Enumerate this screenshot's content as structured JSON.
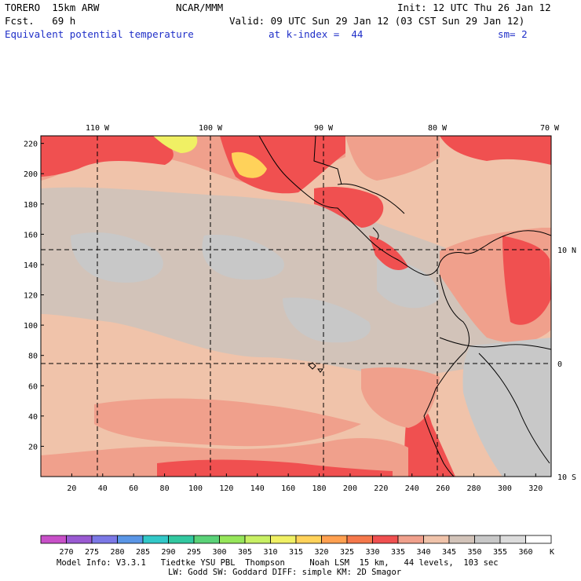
{
  "header": {
    "model": "TORERO  15km ARW",
    "org": "NCAR/MMM",
    "init": "Init: 12 UTC Thu 26 Jan 12",
    "fcst": "Fcst.   69 h",
    "valid": "Valid: 09 UTC Sun 29 Jan 12 (03 CST Sun 29 Jan 12)",
    "field": "Equivalent potential temperature",
    "level": "at k-index =  44",
    "smooth": "sm= 2"
  },
  "map": {
    "lon_labels": [
      "110 W",
      "100 W",
      "90 W",
      "80 W",
      "70 W"
    ],
    "lat_labels": [
      "10 N",
      "0",
      "10 S"
    ],
    "y_ticks": [
      "220",
      "200",
      "180",
      "160",
      "140",
      "120",
      "100",
      "80",
      "60",
      "40",
      "20"
    ],
    "x_ticks": [
      "20",
      "40",
      "60",
      "80",
      "100",
      "120",
      "140",
      "160",
      "180",
      "200",
      "220",
      "240",
      "260",
      "280",
      "300",
      "320"
    ],
    "grid_i_max": 330,
    "grid_j_max": 225
  },
  "colorbar": {
    "unit": "K",
    "levels": [
      "270",
      "275",
      "280",
      "285",
      "290",
      "295",
      "300",
      "305",
      "310",
      "315",
      "320",
      "325",
      "330",
      "335",
      "340",
      "345",
      "350",
      "355",
      "360"
    ],
    "colors": [
      "#c850c8",
      "#9a5ad2",
      "#7b78e6",
      "#5a96e6",
      "#32c8c8",
      "#32c8a0",
      "#5ad278",
      "#96e65a",
      "#c8f064",
      "#f0f064",
      "#ffd25a",
      "#ffa050",
      "#f5784b",
      "#f05050",
      "#f0a08c",
      "#f0c3aa",
      "#d2c3b9",
      "#c8c8c8",
      "#dcdcdc",
      "#ffffff"
    ]
  },
  "footer": {
    "line1": "Model Info: V3.3.1   Tiedtke YSU PBL  Thompson     Noah LSM  15 km,   44 levels,  103 sec",
    "line2": "LW: Godd SW: Goddard DIFF: simple KM: 2D Smagor"
  }
}
